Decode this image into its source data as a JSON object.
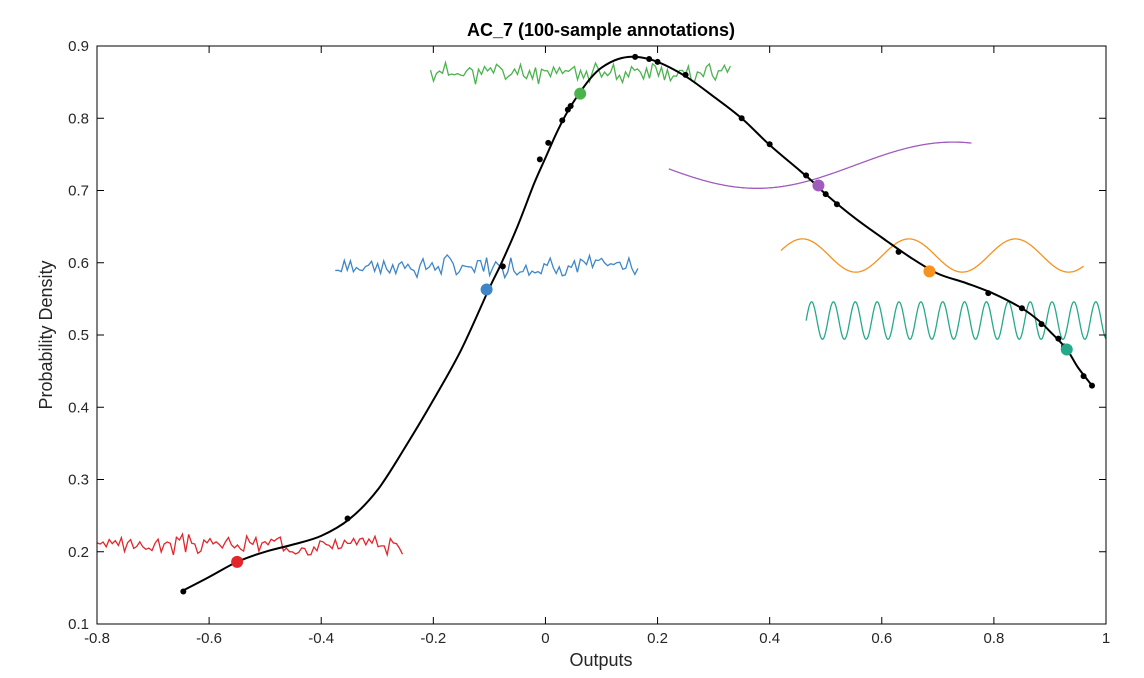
{
  "chart_data": {
    "type": "line",
    "title": "AC_7 (100-sample annotations)",
    "xlabel": "Outputs",
    "ylabel": "Probability Density",
    "xlim": [
      -0.8,
      1.0
    ],
    "ylim": [
      0.1,
      0.9
    ],
    "xticks": [
      "-0.8",
      "-0.6",
      "-0.4",
      "-0.2",
      "0",
      "0.2",
      "0.4",
      "0.6",
      "0.8",
      "1"
    ],
    "yticks": [
      "0.1",
      "0.2",
      "0.3",
      "0.4",
      "0.5",
      "0.6",
      "0.7",
      "0.8",
      "0.9"
    ],
    "grid": false,
    "curve": {
      "color": "#000000",
      "points": [
        [
          -0.65,
          0.145
        ],
        [
          -0.6,
          0.165
        ],
        [
          -0.55,
          0.186
        ],
        [
          -0.5,
          0.2
        ],
        [
          -0.45,
          0.21
        ],
        [
          -0.4,
          0.222
        ],
        [
          -0.35,
          0.245
        ],
        [
          -0.3,
          0.285
        ],
        [
          -0.25,
          0.345
        ],
        [
          -0.2,
          0.41
        ],
        [
          -0.15,
          0.48
        ],
        [
          -0.1,
          0.565
        ],
        [
          -0.08,
          0.597
        ],
        [
          -0.05,
          0.65
        ],
        [
          -0.02,
          0.71
        ],
        [
          0.0,
          0.745
        ],
        [
          0.02,
          0.78
        ],
        [
          0.04,
          0.81
        ],
        [
          0.06,
          0.834
        ],
        [
          0.08,
          0.855
        ],
        [
          0.1,
          0.87
        ],
        [
          0.13,
          0.882
        ],
        [
          0.16,
          0.885
        ],
        [
          0.2,
          0.878
        ],
        [
          0.25,
          0.858
        ],
        [
          0.3,
          0.83
        ],
        [
          0.35,
          0.8
        ],
        [
          0.4,
          0.763
        ],
        [
          0.45,
          0.73
        ],
        [
          0.48,
          0.71
        ],
        [
          0.5,
          0.695
        ],
        [
          0.55,
          0.663
        ],
        [
          0.6,
          0.635
        ],
        [
          0.65,
          0.608
        ],
        [
          0.7,
          0.585
        ],
        [
          0.75,
          0.572
        ],
        [
          0.8,
          0.557
        ],
        [
          0.85,
          0.537
        ],
        [
          0.88,
          0.52
        ],
        [
          0.9,
          0.505
        ],
        [
          0.93,
          0.48
        ],
        [
          0.95,
          0.455
        ],
        [
          0.975,
          0.43
        ]
      ],
      "markers": [
        [
          -0.646,
          0.145
        ],
        [
          -0.353,
          0.246
        ],
        [
          -0.076,
          0.595
        ],
        [
          -0.01,
          0.743
        ],
        [
          0.005,
          0.766
        ],
        [
          0.03,
          0.797
        ],
        [
          0.04,
          0.812
        ],
        [
          0.045,
          0.817
        ],
        [
          0.16,
          0.885
        ],
        [
          0.185,
          0.882
        ],
        [
          0.2,
          0.878
        ],
        [
          0.25,
          0.86
        ],
        [
          0.35,
          0.8
        ],
        [
          0.4,
          0.764
        ],
        [
          0.465,
          0.721
        ],
        [
          0.5,
          0.695
        ],
        [
          0.52,
          0.681
        ],
        [
          0.63,
          0.615
        ],
        [
          0.79,
          0.558
        ],
        [
          0.85,
          0.537
        ],
        [
          0.885,
          0.515
        ],
        [
          0.915,
          0.495
        ],
        [
          0.925,
          0.484
        ],
        [
          0.96,
          0.443
        ],
        [
          0.975,
          0.43
        ]
      ]
    },
    "annotations": [
      {
        "color": "#e3262b",
        "kind": "noisy",
        "x_start": -0.8,
        "x_end": -0.255,
        "y_center": 0.21,
        "amplitude": 0.01,
        "seed": 3,
        "highlight": [
          -0.55,
          0.186
        ]
      },
      {
        "color": "#3e86c8",
        "kind": "noisy",
        "x_start": -0.375,
        "x_end": 0.165,
        "y_center": 0.595,
        "amplitude": 0.011,
        "seed": 7,
        "highlight": [
          -0.105,
          0.563
        ]
      },
      {
        "color": "#4bb34d",
        "kind": "noisy",
        "x_start": -0.205,
        "x_end": 0.33,
        "y_center": 0.863,
        "amplitude": 0.011,
        "seed": 11,
        "highlight": [
          0.062,
          0.834
        ]
      },
      {
        "color": "#a05cbc",
        "kind": "sine",
        "x_start": 0.22,
        "x_end": 0.76,
        "y_center": 0.735,
        "amplitude": 0.032,
        "period": 0.7,
        "phase": 3.3,
        "highlight": [
          0.487,
          0.707
        ]
      },
      {
        "color": "#f7921e",
        "kind": "sine",
        "x_start": 0.42,
        "x_end": 0.96,
        "y_center": 0.61,
        "amplitude": 0.023,
        "period": 0.19,
        "phase": 0.3,
        "highlight": [
          0.685,
          0.588
        ]
      },
      {
        "color": "#26a98a",
        "kind": "sine",
        "x_start": 0.465,
        "x_end": 1.0,
        "y_center": 0.52,
        "amplitude": 0.026,
        "period": 0.039,
        "phase": 0.0,
        "highlight": [
          0.93,
          0.48
        ]
      }
    ]
  }
}
